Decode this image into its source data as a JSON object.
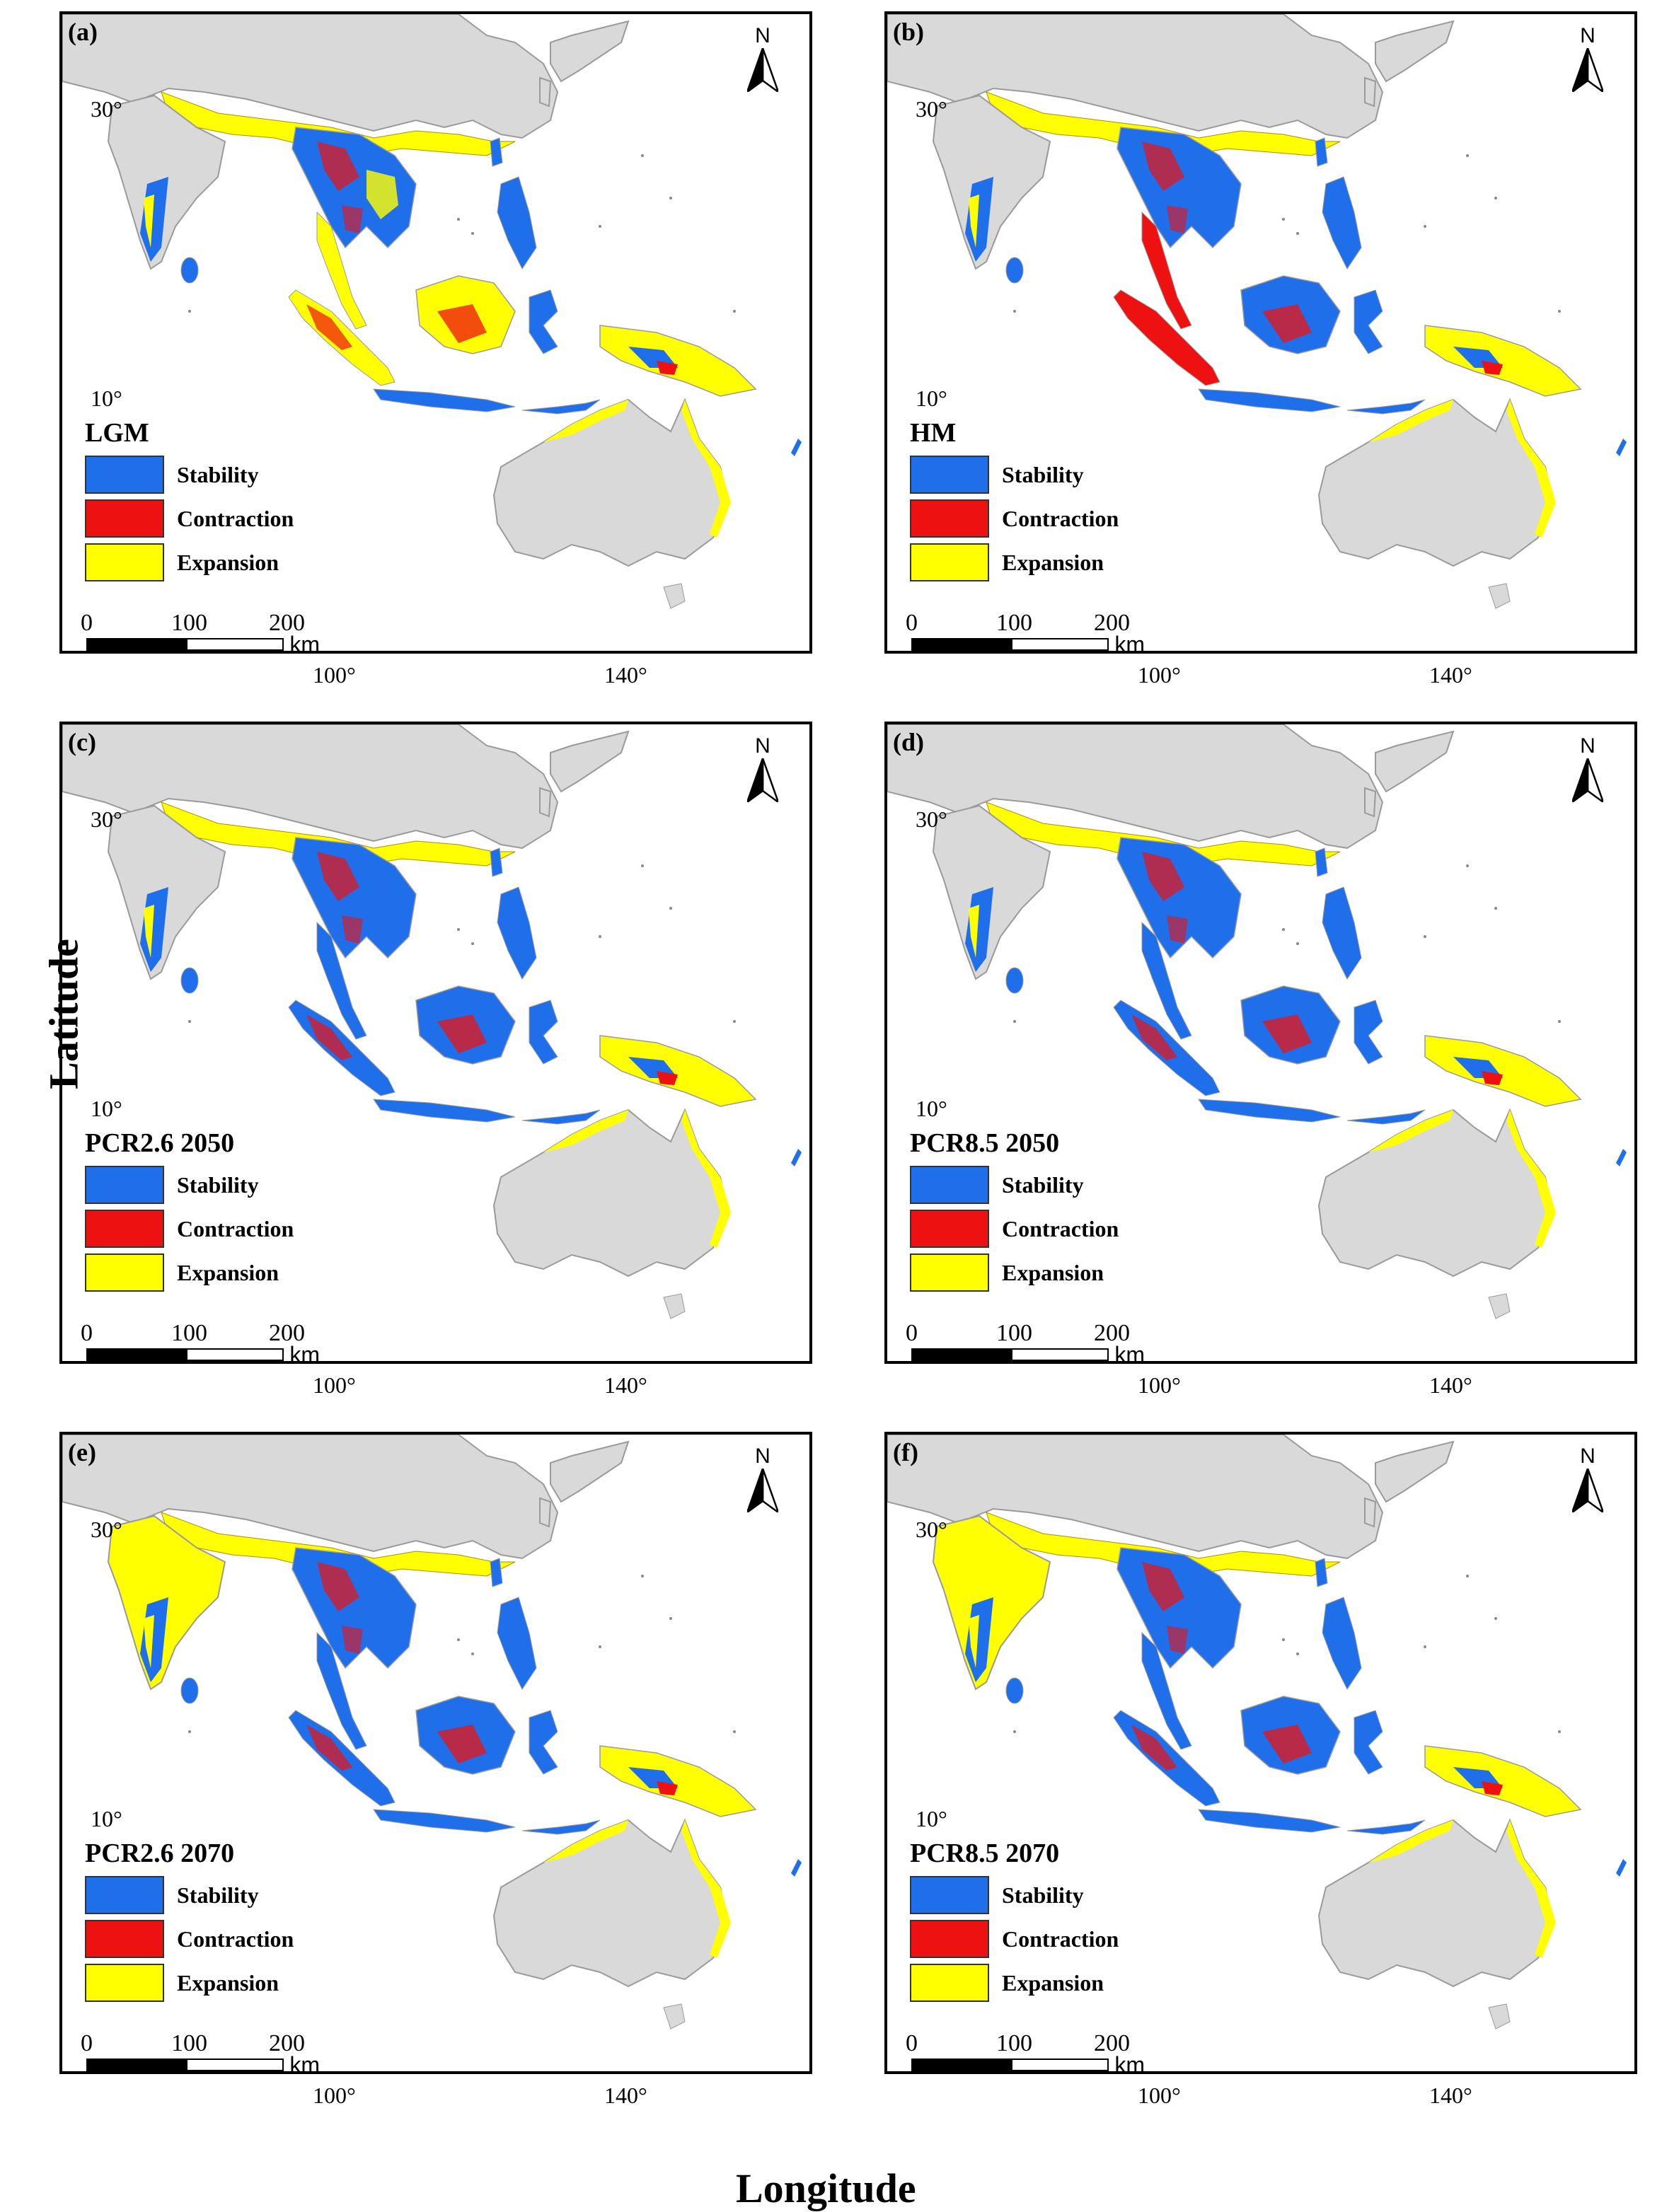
{
  "axes": {
    "xlabel": "Longitude",
    "ylabel": "Latitude",
    "lat_ticks": [
      "30°",
      "10°"
    ],
    "lon_ticks": [
      "100°",
      "140°"
    ]
  },
  "north_label": "N",
  "legend_items": [
    {
      "label": "Stability",
      "color": "#1f6fea"
    },
    {
      "label": "Contraction",
      "color": "#ee1111"
    },
    {
      "label": "Expansion",
      "color": "#ffff00"
    }
  ],
  "scale_bar": {
    "ticks": [
      "0",
      "100",
      "200"
    ],
    "unit": "km"
  },
  "colors": {
    "land": "#d9d9d9",
    "land_border": "#9a9a9a",
    "frame": "#000000"
  },
  "panels": [
    {
      "id": "a",
      "label": "(a)",
      "scenario": "LGM"
    },
    {
      "id": "b",
      "label": "(b)",
      "scenario": "HM"
    },
    {
      "id": "c",
      "label": "(c)",
      "scenario": "PCR2.6 2050"
    },
    {
      "id": "d",
      "label": "(d)",
      "scenario": "PCR8.5 2050"
    },
    {
      "id": "e",
      "label": "(e)",
      "scenario": "PCR2.6 2070"
    },
    {
      "id": "f",
      "label": "(f)",
      "scenario": "PCR8.5 2070"
    }
  ]
}
